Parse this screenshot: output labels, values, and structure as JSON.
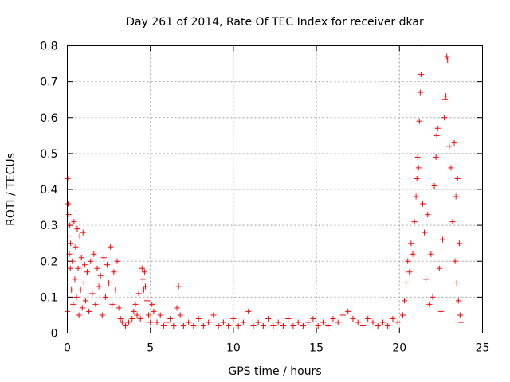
{
  "chart_data": {
    "type": "scatter",
    "title": "Day 261 of 2014, Rate Of TEC Index for receiver dkar",
    "xlabel": "GPS time / hours",
    "ylabel": "ROTI / TECUs",
    "xlim": [
      0,
      25
    ],
    "ylim": [
      0,
      0.8
    ],
    "xticks": [
      0,
      5,
      10,
      15,
      20,
      25
    ],
    "xtick_labels": [
      "0",
      "5",
      "10",
      "15",
      "20",
      "25"
    ],
    "yticks": [
      0,
      0.1,
      0.2,
      0.3,
      0.4,
      0.5,
      0.6,
      0.7,
      0.8
    ],
    "ytick_labels": [
      "0",
      "0.1",
      "0.2",
      "0.3",
      "0.4",
      "0.5",
      "0.6",
      "0.7",
      "0.8"
    ],
    "grid": true,
    "marker": "+",
    "color": "#ff0000",
    "series": [
      {
        "points": [
          [
            0.0,
            0.06
          ],
          [
            0.02,
            0.43
          ],
          [
            0.05,
            0.36
          ],
          [
            0.08,
            0.33
          ],
          [
            0.1,
            0.27
          ],
          [
            0.12,
            0.22
          ],
          [
            0.15,
            0.3
          ],
          [
            0.18,
            0.18
          ],
          [
            0.2,
            0.25
          ],
          [
            0.25,
            0.12
          ],
          [
            0.3,
            0.2
          ],
          [
            0.35,
            0.08
          ],
          [
            0.4,
            0.31
          ],
          [
            0.45,
            0.15
          ],
          [
            0.5,
            0.24
          ],
          [
            0.55,
            0.1
          ],
          [
            0.6,
            0.29
          ],
          [
            0.65,
            0.18
          ],
          [
            0.7,
            0.05
          ],
          [
            0.75,
            0.27
          ],
          [
            0.8,
            0.12
          ],
          [
            0.85,
            0.21
          ],
          [
            0.9,
            0.07
          ],
          [
            0.95,
            0.28
          ],
          [
            1.0,
            0.14
          ],
          [
            1.05,
            0.19
          ],
          [
            1.1,
            0.09
          ],
          [
            1.2,
            0.17
          ],
          [
            1.3,
            0.06
          ],
          [
            1.4,
            0.2
          ],
          [
            1.5,
            0.11
          ],
          [
            1.6,
            0.22
          ],
          [
            1.7,
            0.08
          ],
          [
            1.8,
            0.18
          ],
          [
            1.9,
            0.13
          ],
          [
            2.0,
            0.16
          ],
          [
            2.1,
            0.05
          ],
          [
            2.2,
            0.21
          ],
          [
            2.3,
            0.1
          ],
          [
            2.4,
            0.19
          ],
          [
            2.5,
            0.14
          ],
          [
            2.6,
            0.24
          ],
          [
            2.7,
            0.08
          ],
          [
            2.8,
            0.17
          ],
          [
            2.9,
            0.12
          ],
          [
            3.0,
            0.2
          ],
          [
            3.1,
            0.07
          ],
          [
            3.2,
            0.04
          ],
          [
            3.3,
            0.03
          ],
          [
            3.5,
            0.02
          ],
          [
            3.7,
            0.03
          ],
          [
            3.9,
            0.04
          ],
          [
            4.0,
            0.06
          ],
          [
            4.1,
            0.08
          ],
          [
            4.2,
            0.05
          ],
          [
            4.3,
            0.11
          ],
          [
            4.4,
            0.04
          ],
          [
            4.5,
            0.18
          ],
          [
            4.55,
            0.15
          ],
          [
            4.6,
            0.12
          ],
          [
            4.65,
            0.17
          ],
          [
            4.7,
            0.13
          ],
          [
            4.8,
            0.09
          ],
          [
            4.9,
            0.05
          ],
          [
            5.0,
            0.03
          ],
          [
            5.1,
            0.08
          ],
          [
            5.2,
            0.06
          ],
          [
            5.4,
            0.03
          ],
          [
            5.6,
            0.05
          ],
          [
            5.8,
            0.02
          ],
          [
            6.0,
            0.03
          ],
          [
            6.2,
            0.04
          ],
          [
            6.4,
            0.02
          ],
          [
            6.6,
            0.07
          ],
          [
            6.7,
            0.13
          ],
          [
            6.8,
            0.05
          ],
          [
            7.0,
            0.02
          ],
          [
            7.3,
            0.03
          ],
          [
            7.6,
            0.02
          ],
          [
            7.9,
            0.04
          ],
          [
            8.2,
            0.02
          ],
          [
            8.5,
            0.03
          ],
          [
            8.8,
            0.05
          ],
          [
            9.1,
            0.02
          ],
          [
            9.4,
            0.03
          ],
          [
            9.7,
            0.02
          ],
          [
            10.0,
            0.04
          ],
          [
            10.3,
            0.02
          ],
          [
            10.6,
            0.03
          ],
          [
            10.9,
            0.06
          ],
          [
            11.2,
            0.02
          ],
          [
            11.5,
            0.03
          ],
          [
            11.8,
            0.02
          ],
          [
            12.1,
            0.04
          ],
          [
            12.4,
            0.02
          ],
          [
            12.7,
            0.03
          ],
          [
            13.0,
            0.02
          ],
          [
            13.3,
            0.04
          ],
          [
            13.6,
            0.02
          ],
          [
            13.9,
            0.03
          ],
          [
            14.2,
            0.02
          ],
          [
            14.5,
            0.03
          ],
          [
            14.8,
            0.04
          ],
          [
            15.1,
            0.02
          ],
          [
            15.4,
            0.03
          ],
          [
            15.7,
            0.02
          ],
          [
            16.0,
            0.04
          ],
          [
            16.3,
            0.03
          ],
          [
            16.6,
            0.05
          ],
          [
            16.9,
            0.06
          ],
          [
            17.2,
            0.04
          ],
          [
            17.5,
            0.03
          ],
          [
            17.8,
            0.02
          ],
          [
            18.1,
            0.04
          ],
          [
            18.4,
            0.03
          ],
          [
            18.7,
            0.02
          ],
          [
            19.0,
            0.03
          ],
          [
            19.3,
            0.02
          ],
          [
            19.6,
            0.04
          ],
          [
            19.9,
            0.03
          ],
          [
            20.2,
            0.05
          ],
          [
            20.3,
            0.09
          ],
          [
            20.4,
            0.14
          ],
          [
            20.5,
            0.2
          ],
          [
            20.6,
            0.17
          ],
          [
            20.7,
            0.25
          ],
          [
            20.8,
            0.22
          ],
          [
            20.9,
            0.31
          ],
          [
            21.0,
            0.38
          ],
          [
            21.05,
            0.43
          ],
          [
            21.1,
            0.49
          ],
          [
            21.15,
            0.46
          ],
          [
            21.2,
            0.59
          ],
          [
            21.25,
            0.67
          ],
          [
            21.3,
            0.72
          ],
          [
            21.35,
            0.8
          ],
          [
            21.4,
            0.36
          ],
          [
            21.5,
            0.28
          ],
          [
            21.6,
            0.15
          ],
          [
            21.7,
            0.33
          ],
          [
            21.8,
            0.08
          ],
          [
            21.9,
            0.22
          ],
          [
            22.0,
            0.1
          ],
          [
            22.1,
            0.41
          ],
          [
            22.2,
            0.49
          ],
          [
            22.25,
            0.55
          ],
          [
            22.3,
            0.57
          ],
          [
            22.4,
            0.18
          ],
          [
            22.5,
            0.06
          ],
          [
            22.6,
            0.26
          ],
          [
            22.7,
            0.6
          ],
          [
            22.75,
            0.65
          ],
          [
            22.8,
            0.66
          ],
          [
            22.85,
            0.77
          ],
          [
            22.9,
            0.76
          ],
          [
            23.0,
            0.52
          ],
          [
            23.1,
            0.46
          ],
          [
            23.2,
            0.31
          ],
          [
            23.3,
            0.53
          ],
          [
            23.35,
            0.2
          ],
          [
            23.4,
            0.38
          ],
          [
            23.45,
            0.14
          ],
          [
            23.5,
            0.43
          ],
          [
            23.55,
            0.09
          ],
          [
            23.6,
            0.25
          ],
          [
            23.65,
            0.05
          ],
          [
            23.7,
            0.03
          ]
        ]
      }
    ]
  }
}
